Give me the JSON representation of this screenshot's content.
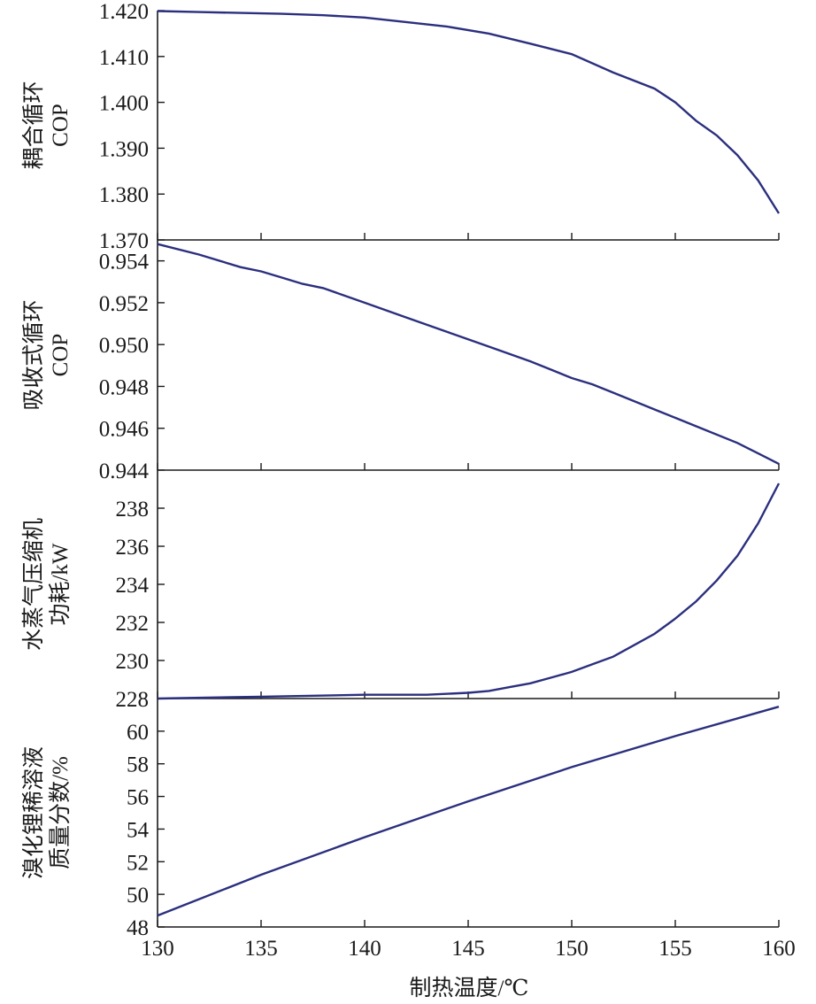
{
  "chart_data": [
    {
      "type": "line",
      "ylabel": [
        "耦合循环",
        "COP"
      ],
      "ylim": [
        1.37,
        1.42
      ],
      "yticks": [
        "1.370",
        "1.380",
        "1.390",
        "1.400",
        "1.410",
        "1.420"
      ],
      "series": [
        {
          "color": "#2b2f7e",
          "x": [
            130,
            132,
            134,
            136,
            138,
            140,
            142,
            144,
            146,
            148,
            150,
            152,
            154,
            155,
            156,
            157,
            158,
            159,
            160
          ],
          "y": [
            1.4199,
            1.4197,
            1.4195,
            1.4193,
            1.419,
            1.4185,
            1.4175,
            1.4165,
            1.415,
            1.4128,
            1.4105,
            1.4065,
            1.403,
            1.4,
            1.396,
            1.3928,
            1.3885,
            1.383,
            1.3758
          ]
        }
      ]
    },
    {
      "type": "line",
      "ylabel": [
        "吸收式循环",
        "COP"
      ],
      "ylim": [
        0.944,
        0.955
      ],
      "yticks": [
        "0.944",
        "0.946",
        "0.948",
        "0.950",
        "0.952",
        "0.954"
      ],
      "series": [
        {
          "color": "#2b2f7e",
          "x": [
            130,
            132,
            134,
            135,
            136,
            137,
            138,
            140,
            142,
            144,
            146,
            148,
            149,
            150,
            151,
            152,
            154,
            155,
            156,
            158,
            159,
            160
          ],
          "y": [
            0.9548,
            0.9543,
            0.9537,
            0.9535,
            0.9532,
            0.9529,
            0.9527,
            0.952,
            0.9513,
            0.9506,
            0.9499,
            0.9492,
            0.9488,
            0.9484,
            0.9481,
            0.9477,
            0.9469,
            0.9465,
            0.9461,
            0.9453,
            0.9448,
            0.9443
          ]
        }
      ]
    },
    {
      "type": "line",
      "ylabel": [
        "水蒸气压缩机",
        "功耗/kW"
      ],
      "ylim": [
        228,
        240
      ],
      "yticks": [
        "228",
        "230",
        "232",
        "234",
        "236",
        "238"
      ],
      "series": [
        {
          "color": "#2b2f7e",
          "x": [
            130,
            135,
            140,
            143,
            145,
            146,
            147,
            148,
            149,
            150,
            151,
            152,
            153,
            154,
            155,
            156,
            157,
            158,
            159,
            160
          ],
          "y": [
            228.0,
            228.1,
            228.2,
            228.2,
            228.3,
            228.4,
            228.6,
            228.8,
            229.1,
            229.4,
            229.8,
            230.2,
            230.8,
            231.4,
            232.2,
            233.1,
            234.2,
            235.5,
            237.2,
            239.3
          ]
        }
      ]
    },
    {
      "type": "line",
      "ylabel": [
        "溴化锂稀溶液",
        "质量分数/%"
      ],
      "ylim": [
        48,
        62
      ],
      "yticks": [
        "48",
        "50",
        "52",
        "54",
        "56",
        "58",
        "60"
      ],
      "series": [
        {
          "color": "#2b2f7e",
          "x": [
            130,
            135,
            140,
            145,
            150,
            155,
            160
          ],
          "y": [
            48.7,
            51.2,
            53.5,
            55.7,
            57.8,
            59.7,
            61.5
          ]
        }
      ]
    }
  ],
  "x_axis": {
    "label": "制热温度/℃",
    "ticks": [
      "130",
      "135",
      "140",
      "145",
      "150",
      "155",
      "160"
    ],
    "xlim": [
      130,
      160
    ]
  }
}
